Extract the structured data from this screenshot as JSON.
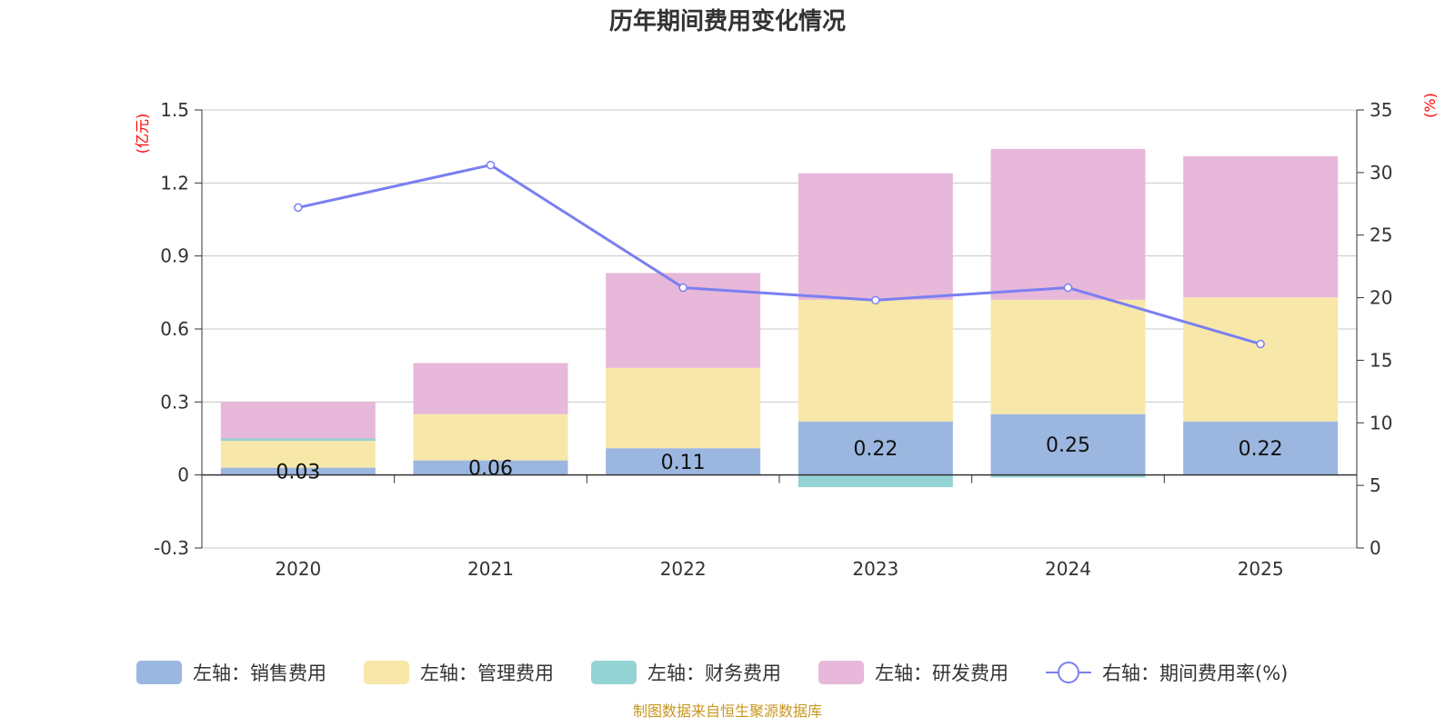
{
  "chart_data": {
    "type": "bar",
    "title": "历年期间费用变化情况",
    "categories": [
      "2020",
      "2021",
      "2022",
      "2023",
      "2024",
      "2025"
    ],
    "left_axis": {
      "unit": "(亿元)",
      "ylim": [
        -0.3,
        1.5
      ],
      "ticks": [
        "1.5",
        "1.2",
        "0.9",
        "0.6",
        "0.3",
        "0",
        "-0.3"
      ]
    },
    "right_axis": {
      "unit": "(%)",
      "ylim": [
        0,
        35
      ],
      "ticks": [
        "35",
        "30",
        "25",
        "20",
        "15",
        "10",
        "5",
        "0"
      ]
    },
    "series": [
      {
        "name": "左轴：销售费用",
        "type": "bar",
        "axis": "left",
        "color": "#9bb7e0",
        "values": [
          0.03,
          0.06,
          0.11,
          0.22,
          0.25,
          0.22
        ],
        "labels": [
          "0.03",
          "0.06",
          "0.11",
          "0.22",
          "0.25",
          "0.22"
        ]
      },
      {
        "name": "左轴：管理费用",
        "type": "bar",
        "axis": "left",
        "color": "#f7e7a8",
        "values": [
          0.11,
          0.19,
          0.33,
          0.5,
          0.47,
          0.51
        ]
      },
      {
        "name": "左轴：财务费用",
        "type": "bar",
        "axis": "left",
        "color": "#94d3d3",
        "values": [
          0.01,
          0.0,
          0.0,
          -0.05,
          -0.01,
          0.0
        ]
      },
      {
        "name": "左轴：研发费用",
        "type": "bar",
        "axis": "left",
        "color": "#e7b8d9",
        "values": [
          0.15,
          0.21,
          0.39,
          0.52,
          0.62,
          0.58
        ]
      },
      {
        "name": "右轴：期间费用率(%)",
        "type": "line",
        "axis": "right",
        "color": "#7b7ff0",
        "values": [
          27.2,
          30.6,
          20.8,
          19.8,
          20.8,
          16.3
        ]
      }
    ],
    "legend_position": "bottom",
    "grid": true
  },
  "footer": {
    "source": "制图数据来自恒生聚源数据库"
  }
}
